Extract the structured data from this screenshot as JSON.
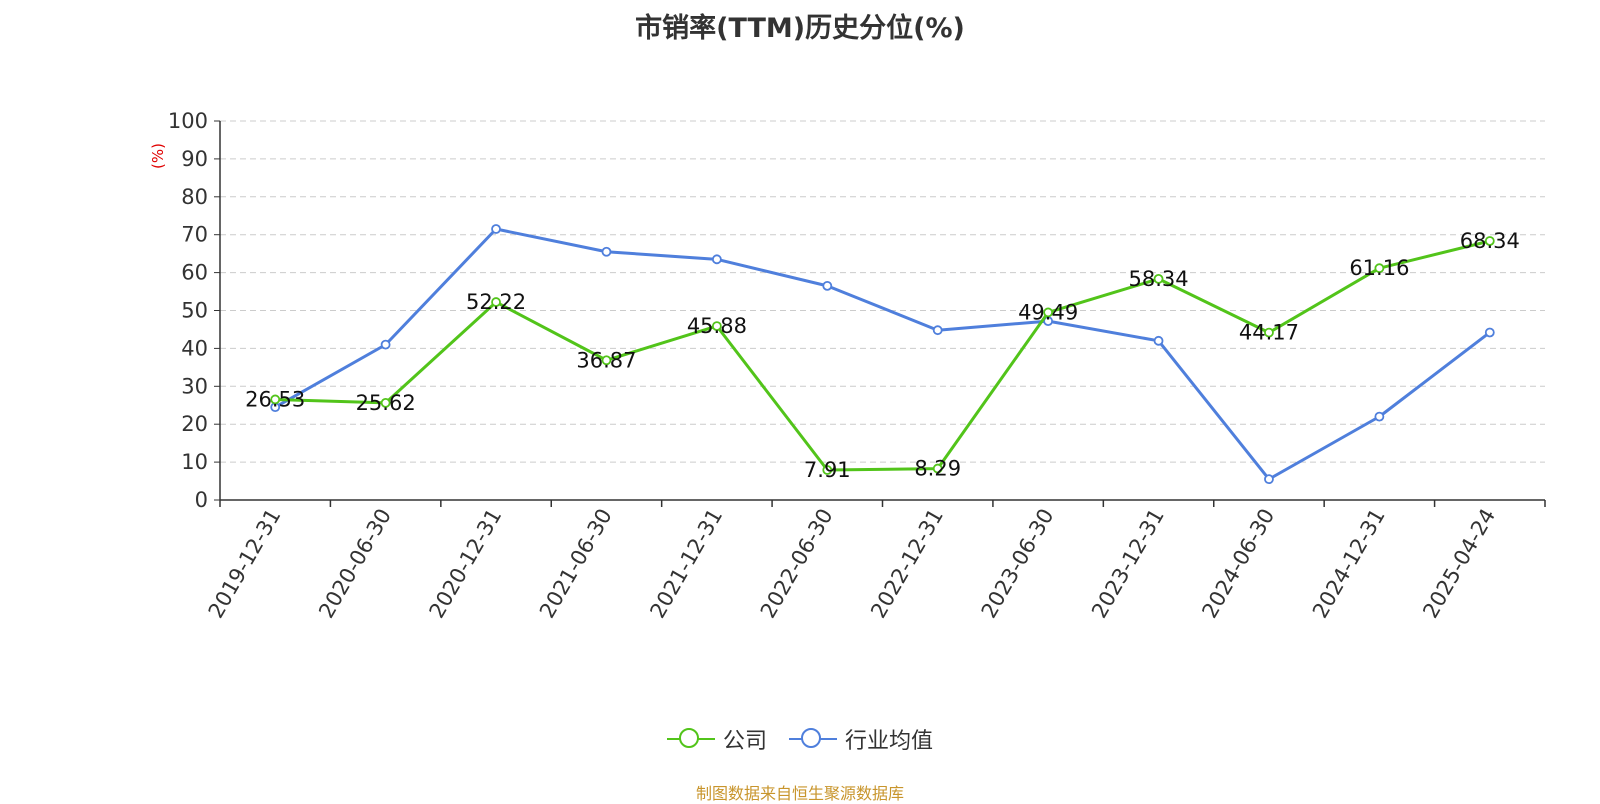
{
  "chart_data": {
    "type": "line",
    "title": "市销率(TTM)历史分位(%)",
    "ylabel": "(%)",
    "ylim": [
      0,
      100
    ],
    "yticks": [
      0,
      10,
      20,
      30,
      40,
      50,
      60,
      70,
      80,
      90,
      100
    ],
    "grid": true,
    "legend_position": "bottom-center",
    "categories": [
      "2019-12-31",
      "2020-06-30",
      "2020-12-31",
      "2021-06-30",
      "2021-12-31",
      "2022-06-30",
      "2022-12-31",
      "2023-06-30",
      "2023-12-31",
      "2024-06-30",
      "2024-12-31",
      "2025-04-24"
    ],
    "series": [
      {
        "name": "公司",
        "color": "#52c41a",
        "show_labels": true,
        "values": [
          26.53,
          25.62,
          52.22,
          36.87,
          45.88,
          7.91,
          8.29,
          49.49,
          58.34,
          44.17,
          61.16,
          68.34
        ]
      },
      {
        "name": "行业均值",
        "color": "#4f7fdc",
        "show_labels": false,
        "values": [
          24.5,
          41.0,
          71.5,
          65.5,
          63.5,
          56.5,
          44.8,
          47.2,
          42.0,
          5.5,
          22.0,
          44.2
        ]
      }
    ]
  },
  "source": {
    "text": "制图数据来自恒生聚源数据库",
    "color": "#c8952c"
  },
  "colors": {
    "ylabel": "#e00000",
    "axis": "#333333",
    "grid": "#cccccc"
  }
}
